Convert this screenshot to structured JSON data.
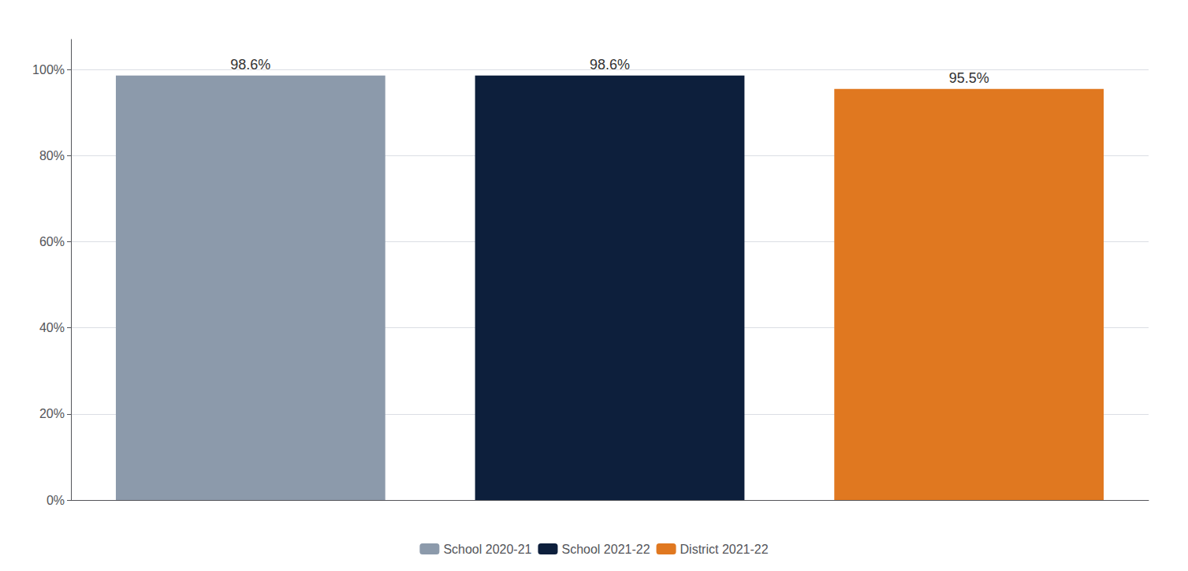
{
  "chart_data": {
    "type": "bar",
    "categories": [
      "School 2020-21",
      "School 2021-22",
      "District 2021-22"
    ],
    "values": [
      98.6,
      98.6,
      95.5
    ],
    "value_labels": [
      "98.6%",
      "98.6%",
      "95.5%"
    ],
    "colors": [
      "#8c9aab",
      "#0d1f3c",
      "#e07820"
    ],
    "ylim": [
      0,
      107
    ],
    "yticks": [
      {
        "value": 0,
        "label": "0%"
      },
      {
        "value": 20,
        "label": "20%"
      },
      {
        "value": 40,
        "label": "40%"
      },
      {
        "value": 60,
        "label": "60%"
      },
      {
        "value": 80,
        "label": "80%"
      },
      {
        "value": 100,
        "label": "100%"
      }
    ],
    "grid": true,
    "legend": "bottom",
    "data_labels": true,
    "tick_labels": "y"
  }
}
